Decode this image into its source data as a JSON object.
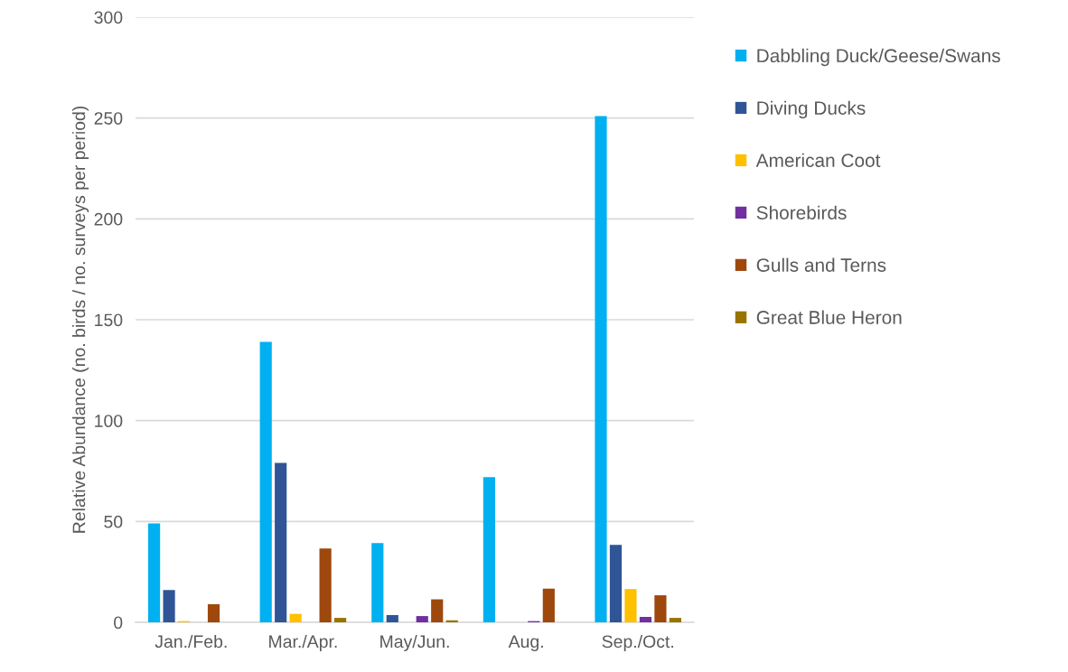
{
  "chart_data": {
    "type": "bar",
    "ylabel": "Relative Abundance (no. birds / no. surveys per period)",
    "categories": [
      "Jan./Feb.",
      "Mar./Apr.",
      "May/Jun.",
      "Aug.",
      "Sep./Oct."
    ],
    "series": [
      {
        "name": "Dabbling Duck/Geese/Swans",
        "color": "#00b0f0",
        "values": [
          49,
          139,
          39.3,
          72,
          251
        ]
      },
      {
        "name": "Diving Ducks",
        "color": "#2f5597",
        "values": [
          16,
          79,
          3.6,
          null,
          38.4
        ]
      },
      {
        "name": "American Coot",
        "color": "#ffc000",
        "values": [
          0.6,
          4.2,
          null,
          null,
          16.5
        ]
      },
      {
        "name": "Shorebirds",
        "color": "#7030a0",
        "values": [
          null,
          null,
          3.1,
          0.6,
          2.7
        ]
      },
      {
        "name": "Gulls and Terns",
        "color": "#9e480e",
        "values": [
          9,
          36.6,
          11.4,
          16.7,
          13.4
        ]
      },
      {
        "name": "Great Blue Heron",
        "color": "#997300",
        "values": [
          null,
          2.2,
          1.0,
          null,
          2.2
        ]
      }
    ],
    "ylim": [
      0,
      300
    ],
    "yticks": [
      0,
      50,
      100,
      150,
      200,
      250,
      300
    ],
    "grid": "y",
    "legend": "right"
  }
}
